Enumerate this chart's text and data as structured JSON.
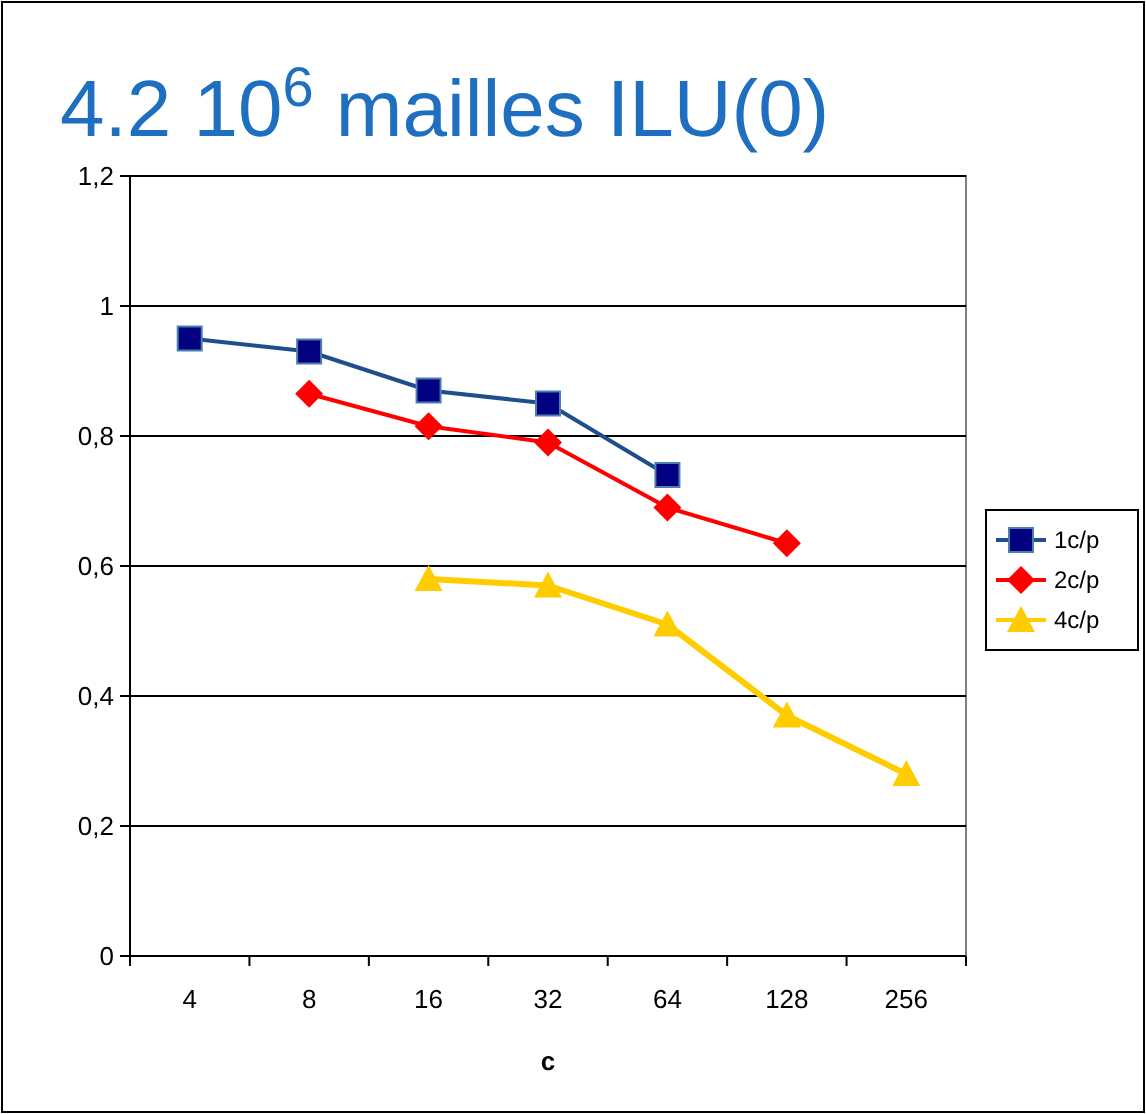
{
  "chart_data": {
    "type": "line",
    "title": "4.2 10$^{6}$ mailles ILU(0)",
    "xlabel": "c",
    "categories": [
      "4",
      "8",
      "16",
      "32",
      "64",
      "128",
      "256"
    ],
    "series": [
      {
        "name": "1c/p",
        "color": "#000080",
        "marker": "square",
        "values": [
          0.95,
          0.93,
          0.87,
          0.85,
          0.74,
          null,
          null
        ]
      },
      {
        "name": "2c/p",
        "color": "#ff0000",
        "marker": "diamond",
        "values": [
          null,
          0.865,
          0.815,
          0.79,
          0.69,
          0.635,
          null
        ]
      },
      {
        "name": "4c/p",
        "color": "#ffcc00",
        "marker": "triangle",
        "values": [
          null,
          null,
          0.58,
          0.57,
          0.51,
          0.37,
          0.28
        ]
      }
    ],
    "ylim": [
      0,
      1.2
    ],
    "yticks": [
      0,
      {
        "value": 0.2,
        "label": "0,2"
      },
      {
        "value": 0.4,
        "label": "0,4"
      },
      {
        "value": 0.6,
        "label": "0,6"
      },
      {
        "value": 0.8,
        "label": "0,8"
      },
      1,
      {
        "value": 1.2,
        "label": "1,2"
      }
    ],
    "grid": "y",
    "legend": "right"
  }
}
